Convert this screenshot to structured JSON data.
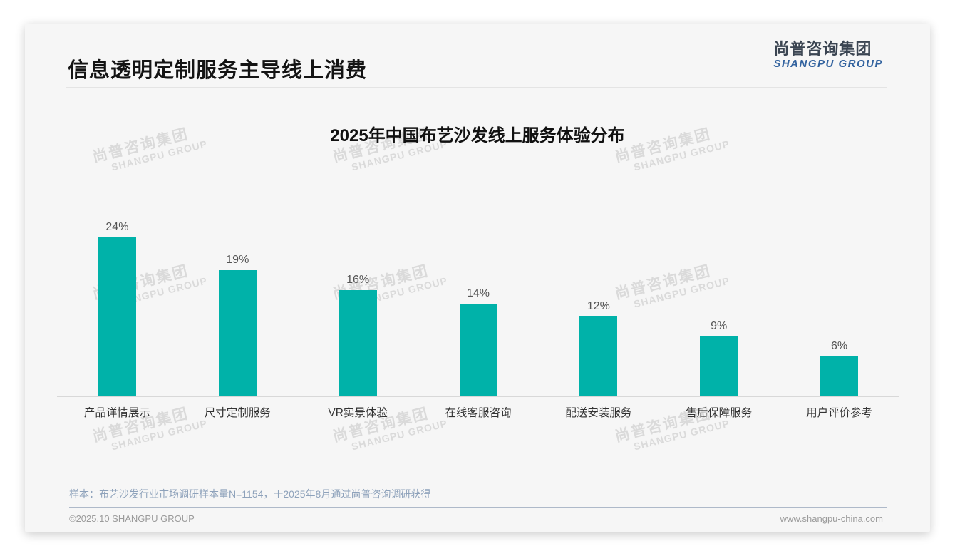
{
  "page_title": "信息透明定制服务主导线上消费",
  "logo": {
    "cn": "尚普咨询集团",
    "en": "SHANGPU GROUP"
  },
  "watermark": {
    "cn": "尚普咨询集团",
    "en": "SHANGPU GROUP"
  },
  "chart_data": {
    "type": "bar",
    "title": "2025年中国布艺沙发线上服务体验分布",
    "categories": [
      "产品详情展示",
      "尺寸定制服务",
      "VR实景体验",
      "在线客服咨询",
      "配送安装服务",
      "售后保障服务",
      "用户评价参考"
    ],
    "values": [
      24,
      19,
      16,
      14,
      12,
      9,
      6
    ],
    "value_labels": [
      "24%",
      "19%",
      "16%",
      "14%",
      "12%",
      "9%",
      "6%"
    ],
    "unit": "%",
    "ylim": [
      0,
      25
    ],
    "bar_color": "#00b2a9",
    "grid": false,
    "legend_position": "none",
    "xlabel": "",
    "ylabel": ""
  },
  "footnote": "样本：布艺沙发行业市场调研样本量N=1154，于2025年8月通过尚普咨询调研获得",
  "footer": {
    "left": "©2025.10 SHANGPU GROUP",
    "right": "www.shangpu-china.com"
  }
}
